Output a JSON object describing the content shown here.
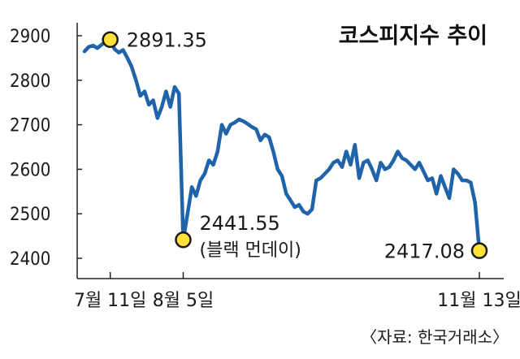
{
  "chart_data": {
    "type": "line",
    "title": "코스피지수 추이",
    "source": "〈자료: 한국거래소〉",
    "xlabel": "",
    "ylabel": "",
    "ylim": [
      2380,
      2920
    ],
    "y_ticks": [
      "2900",
      "2800",
      "2700",
      "2600",
      "2500",
      "2400"
    ],
    "x_ticks": [
      {
        "label": "7월 11일",
        "index": 6
      },
      {
        "label": "8월 5일",
        "index": 23
      },
      {
        "label": "11월 13일",
        "index": 92
      }
    ],
    "grid": false,
    "line_color": "#1f63aa",
    "marker_color": "#ffe13a",
    "series": [
      {
        "values": [
          2865,
          2875,
          2878,
          2872,
          2880,
          2888,
          2891.35,
          2870,
          2862,
          2868,
          2850,
          2830,
          2800,
          2765,
          2775,
          2745,
          2755,
          2715,
          2740,
          2775,
          2740,
          2785,
          2770,
          2441.55,
          2500,
          2560,
          2540,
          2575,
          2590,
          2620,
          2610,
          2640,
          2700,
          2680,
          2700,
          2705,
          2712,
          2708,
          2702,
          2695,
          2690,
          2665,
          2678,
          2672,
          2640,
          2600,
          2585,
          2545,
          2530,
          2515,
          2520,
          2505,
          2500,
          2510,
          2575,
          2580,
          2590,
          2600,
          2615,
          2620,
          2605,
          2640,
          2610,
          2655,
          2580,
          2615,
          2620,
          2600,
          2575,
          2615,
          2600,
          2605,
          2620,
          2640,
          2625,
          2620,
          2610,
          2600,
          2615,
          2595,
          2575,
          2580,
          2545,
          2585,
          2560,
          2535,
          2600,
          2590,
          2575,
          2575,
          2570,
          2525,
          2417.08
        ]
      }
    ],
    "annotations": [
      {
        "label": "2891.35",
        "sublabel": "",
        "index": 6,
        "value": 2891.35
      },
      {
        "label": "2441.55",
        "sublabel": "(블랙 먼데이)",
        "index": 23,
        "value": 2441.55
      },
      {
        "label": "2417.08",
        "sublabel": "",
        "index": 92,
        "value": 2417.08
      }
    ]
  }
}
